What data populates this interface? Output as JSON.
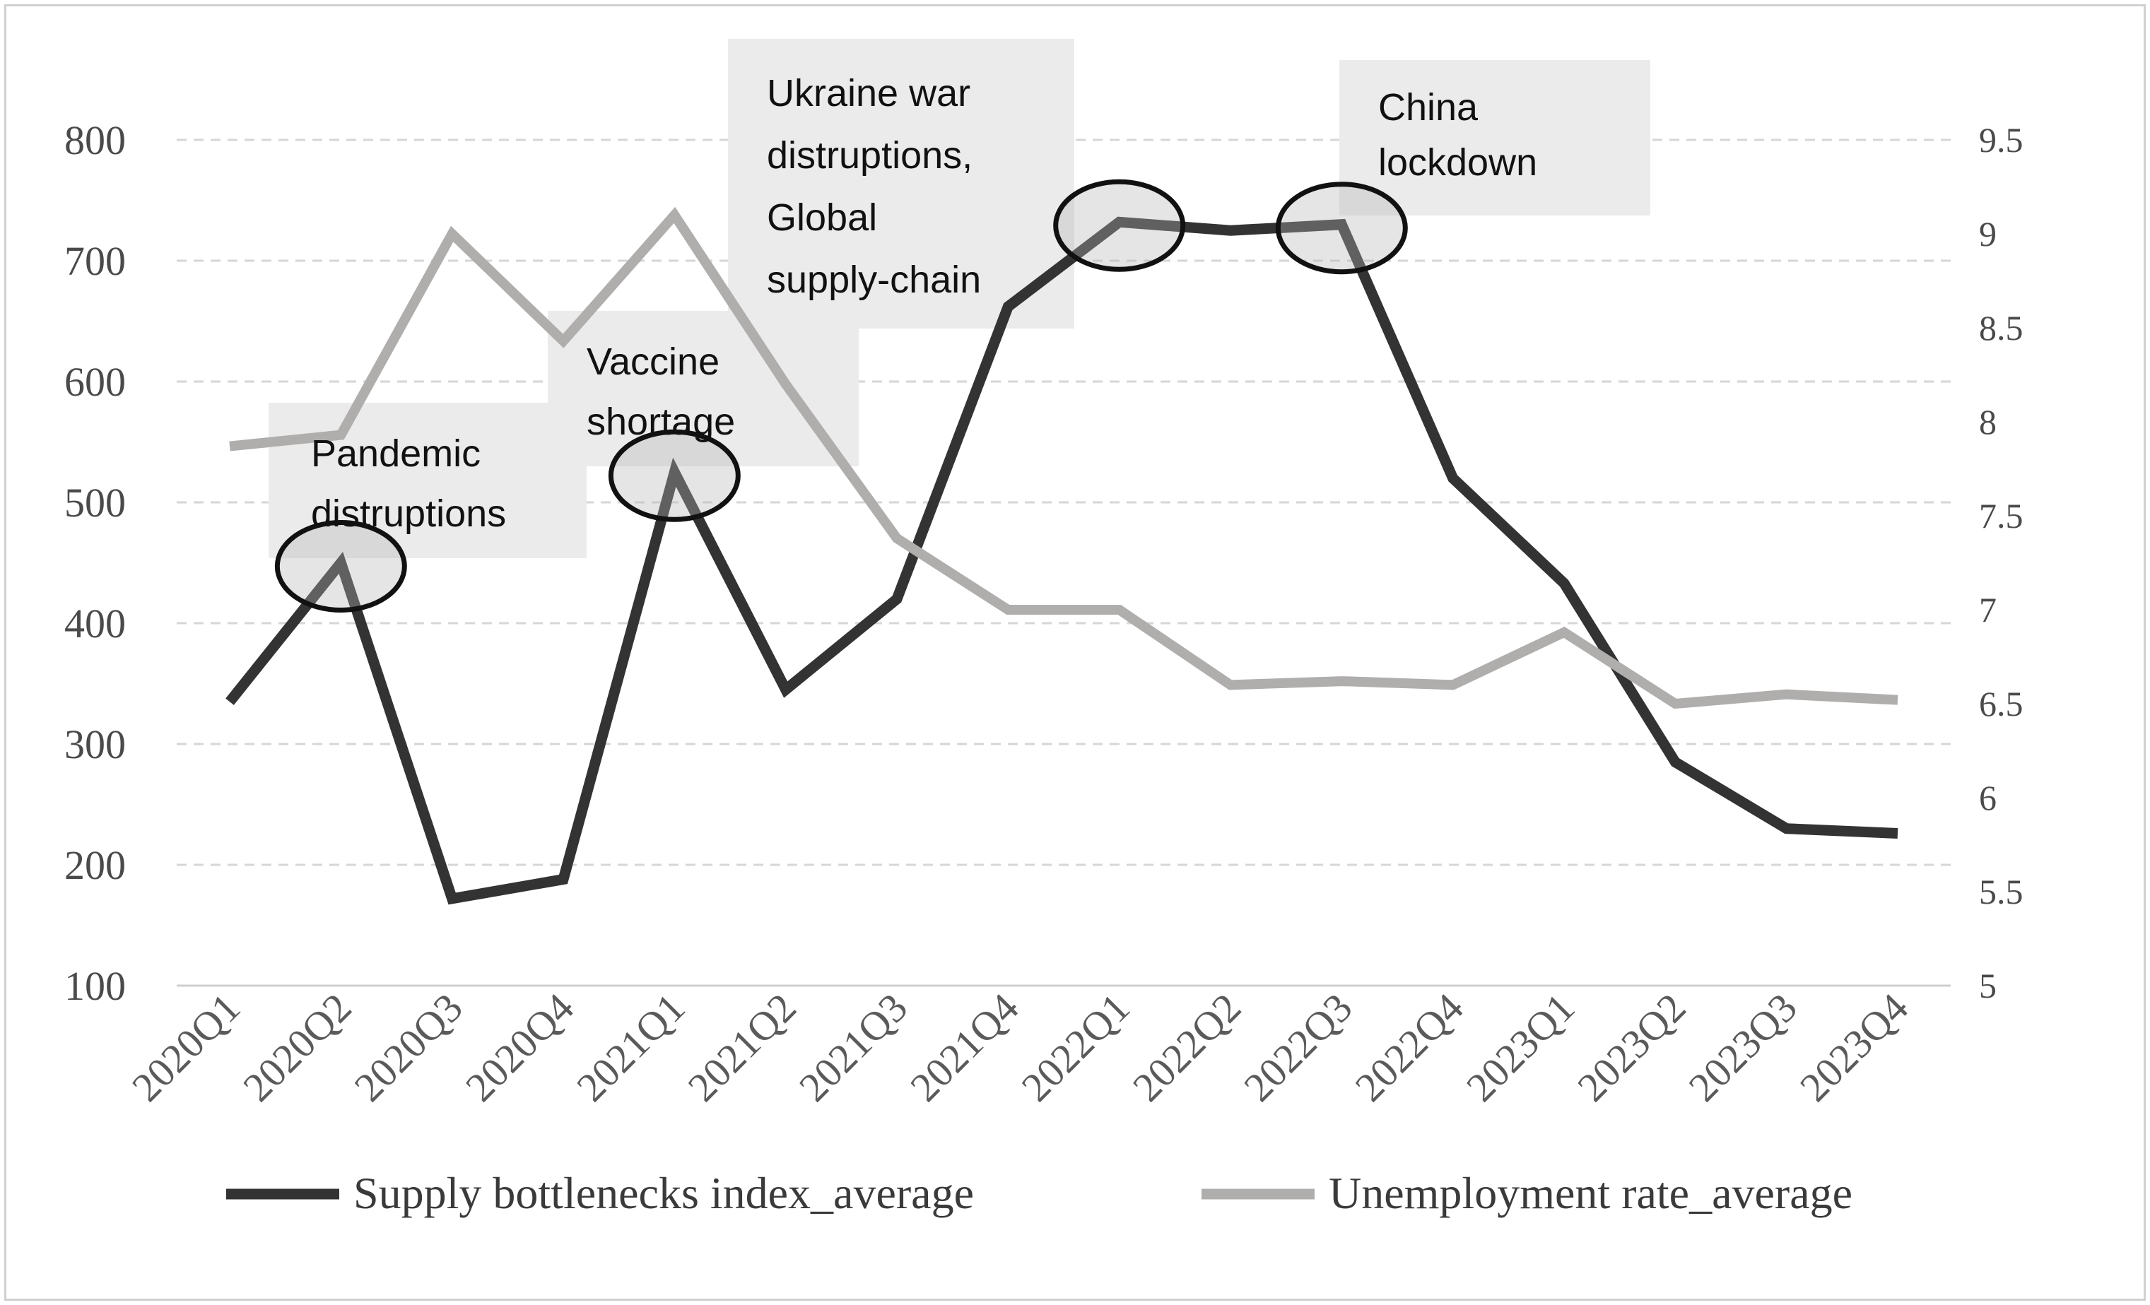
{
  "chart_data": {
    "type": "line",
    "title": "",
    "xlabel": "",
    "ylabel": "",
    "categories": [
      "2020Q1",
      "2020Q2",
      "2020Q3",
      "2020Q4",
      "2021Q1",
      "2021Q2",
      "2021Q3",
      "2021Q4",
      "2022Q1",
      "2022Q2",
      "2022Q3",
      "2022Q4",
      "2023Q1",
      "2023Q2",
      "2023Q3",
      "2023Q4"
    ],
    "y_left": {
      "min": 100,
      "max": 800,
      "ticks": [
        100,
        200,
        300,
        400,
        500,
        600,
        700,
        800
      ],
      "tick_labels": [
        "100",
        "200",
        "300",
        "400",
        "500",
        "600",
        "700",
        "800"
      ]
    },
    "y_right": {
      "min": 5,
      "max": 9.5,
      "ticks": [
        5,
        5.5,
        6,
        6.5,
        7,
        7.5,
        8,
        8.5,
        9,
        9.5
      ],
      "tick_labels": [
        "5",
        "5.5",
        "6",
        "6.5",
        "7",
        "7.5",
        "8",
        "8.5",
        "9",
        "9.5"
      ]
    },
    "grid": true,
    "legend_position": "bottom",
    "series": [
      {
        "name": "Supply bottlenecks index_average",
        "axis": "left",
        "color": "#333333",
        "values": [
          335,
          450,
          172,
          188,
          525,
          345,
          420,
          662,
          732,
          725,
          730,
          520,
          433,
          285,
          230,
          226
        ]
      },
      {
        "name": "Unemployment rate_average",
        "axis": "right",
        "color": "#b0adad",
        "values": [
          7.87,
          7.93,
          9.0,
          8.43,
          9.1,
          8.2,
          7.38,
          7.0,
          7.0,
          6.6,
          6.62,
          6.6,
          6.88,
          6.5,
          6.55,
          6.52
        ]
      }
    ],
    "annotations": [
      {
        "lines": [
          "Pandemic",
          "distruptions"
        ],
        "category": "2020Q2"
      },
      {
        "lines": [
          "Vaccine",
          "shortage"
        ],
        "category": "2021Q1"
      },
      {
        "lines": [
          "Ukraine war",
          "distruptions,",
          "Global",
          "supply-chain"
        ],
        "category": "2022Q1"
      },
      {
        "lines": [
          "China",
          "lockdown"
        ],
        "category": "2022Q3"
      }
    ]
  }
}
